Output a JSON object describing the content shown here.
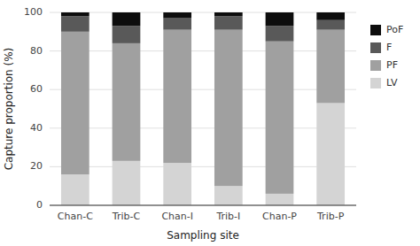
{
  "chart_data": {
    "type": "bar",
    "stacked": true,
    "categories": [
      "Chan-C",
      "Trib-C",
      "Chan-I",
      "Trib-I",
      "Chan-P",
      "Trib-P"
    ],
    "series": [
      {
        "name": "LV",
        "color": "#d4d4d4",
        "values": [
          16,
          23,
          22,
          10,
          6,
          53
        ]
      },
      {
        "name": "PF",
        "color": "#a0a0a0",
        "values": [
          74,
          61,
          69,
          81,
          79,
          38
        ]
      },
      {
        "name": "F",
        "color": "#595959",
        "values": [
          8,
          9,
          6,
          7,
          8,
          5
        ]
      },
      {
        "name": "PoF",
        "color": "#0d0d0d",
        "values": [
          2,
          7,
          3,
          2,
          7,
          4
        ]
      }
    ],
    "xlabel": "Sampling site",
    "ylabel": "Capture proportion (%)",
    "ylim": [
      0,
      100
    ],
    "yticks": [
      0,
      20,
      40,
      60,
      80,
      100
    ],
    "grid": true,
    "legend": "right"
  }
}
